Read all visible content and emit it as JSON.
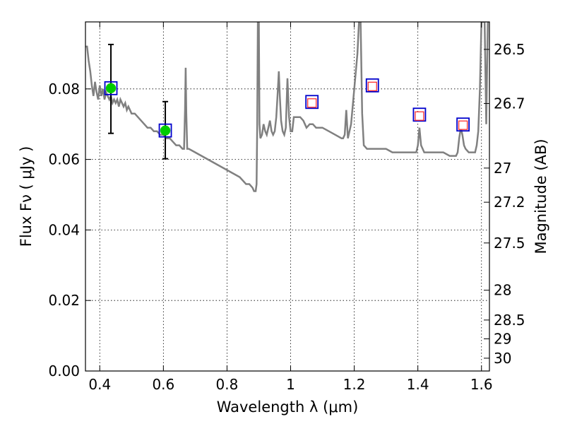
{
  "chart_data": {
    "type": "scatter",
    "title": "",
    "xlabel": "Wavelength  λ (μm)",
    "ylabel": "Flux  Fν  ( μJy )",
    "ylabel_right": "Magnitude (AB)",
    "xlim": [
      0.355,
      1.625
    ],
    "ylim": [
      0.0,
      0.099
    ],
    "grid": true,
    "x_ticks": [
      {
        "value": 0.4,
        "label": "0.4"
      },
      {
        "value": 0.6,
        "label": "0.6"
      },
      {
        "value": 0.8,
        "label": "0.8"
      },
      {
        "value": 1.0,
        "label": "1"
      },
      {
        "value": 1.2,
        "label": "1.2"
      },
      {
        "value": 1.4,
        "label": "1.4"
      },
      {
        "value": 1.6,
        "label": "1.6"
      }
    ],
    "y_ticks": [
      {
        "value": 0.0,
        "label": "0.00"
      },
      {
        "value": 0.02,
        "label": "0.02"
      },
      {
        "value": 0.04,
        "label": "0.04"
      },
      {
        "value": 0.06,
        "label": "0.06"
      },
      {
        "value": 0.08,
        "label": "0.08"
      }
    ],
    "mag_ticks": [
      {
        "mag": 26.5,
        "label": "26.5"
      },
      {
        "mag": 26.7,
        "label": "26.7"
      },
      {
        "mag": 27.0,
        "label": "27"
      },
      {
        "mag": 27.2,
        "label": "27.2"
      },
      {
        "mag": 27.5,
        "label": "27.5"
      },
      {
        "mag": 28.0,
        "label": "28"
      },
      {
        "mag": 28.5,
        "label": "28.5"
      },
      {
        "mag": 29.0,
        "label": "29"
      },
      {
        "mag": 30.0,
        "label": "30"
      }
    ],
    "colors": {
      "model": "#808080",
      "observed_fill": "#00cc00",
      "error_bar": "#000000",
      "model_box": "#0000cc",
      "predicted_box": "#ff3030"
    },
    "model_spectrum": {
      "name": "",
      "points": [
        [
          0.355,
          0.092
        ],
        [
          0.36,
          0.092
        ],
        [
          0.365,
          0.088
        ],
        [
          0.37,
          0.085
        ],
        [
          0.375,
          0.081
        ],
        [
          0.38,
          0.078
        ],
        [
          0.385,
          0.082
        ],
        [
          0.39,
          0.079
        ],
        [
          0.395,
          0.077
        ],
        [
          0.4,
          0.081
        ],
        [
          0.405,
          0.078
        ],
        [
          0.41,
          0.08
        ],
        [
          0.415,
          0.077
        ],
        [
          0.42,
          0.079
        ],
        [
          0.425,
          0.078
        ],
        [
          0.43,
          0.077
        ],
        [
          0.435,
          0.078
        ],
        [
          0.44,
          0.076
        ],
        [
          0.445,
          0.077
        ],
        [
          0.45,
          0.076
        ],
        [
          0.455,
          0.077
        ],
        [
          0.46,
          0.075
        ],
        [
          0.465,
          0.077
        ],
        [
          0.47,
          0.076
        ],
        [
          0.475,
          0.075
        ],
        [
          0.48,
          0.076
        ],
        [
          0.485,
          0.074
        ],
        [
          0.49,
          0.075
        ],
        [
          0.5,
          0.073
        ],
        [
          0.51,
          0.073
        ],
        [
          0.52,
          0.072
        ],
        [
          0.53,
          0.071
        ],
        [
          0.54,
          0.07
        ],
        [
          0.55,
          0.069
        ],
        [
          0.56,
          0.069
        ],
        [
          0.57,
          0.068
        ],
        [
          0.58,
          0.068
        ],
        [
          0.59,
          0.067
        ],
        [
          0.6,
          0.067
        ],
        [
          0.61,
          0.066
        ],
        [
          0.62,
          0.066
        ],
        [
          0.63,
          0.065
        ],
        [
          0.64,
          0.064
        ],
        [
          0.65,
          0.064
        ],
        [
          0.66,
          0.063
        ],
        [
          0.665,
          0.063
        ],
        [
          0.668,
          0.074
        ],
        [
          0.67,
          0.086
        ],
        [
          0.672,
          0.073
        ],
        [
          0.675,
          0.063
        ],
        [
          0.68,
          0.063
        ],
        [
          0.7,
          0.062
        ],
        [
          0.72,
          0.061
        ],
        [
          0.74,
          0.06
        ],
        [
          0.76,
          0.059
        ],
        [
          0.78,
          0.058
        ],
        [
          0.8,
          0.057
        ],
        [
          0.82,
          0.056
        ],
        [
          0.84,
          0.055
        ],
        [
          0.86,
          0.053
        ],
        [
          0.87,
          0.053
        ],
        [
          0.88,
          0.052
        ],
        [
          0.885,
          0.051
        ],
        [
          0.89,
          0.051
        ],
        [
          0.893,
          0.053
        ],
        [
          0.895,
          0.07
        ],
        [
          0.897,
          0.099
        ],
        [
          0.9,
          0.099
        ],
        [
          0.902,
          0.07
        ],
        [
          0.905,
          0.066
        ],
        [
          0.91,
          0.067
        ],
        [
          0.915,
          0.07
        ],
        [
          0.92,
          0.068
        ],
        [
          0.925,
          0.067
        ],
        [
          0.93,
          0.069
        ],
        [
          0.935,
          0.071
        ],
        [
          0.94,
          0.068
        ],
        [
          0.945,
          0.067
        ],
        [
          0.95,
          0.068
        ],
        [
          0.955,
          0.072
        ],
        [
          0.96,
          0.08
        ],
        [
          0.963,
          0.085
        ],
        [
          0.966,
          0.078
        ],
        [
          0.97,
          0.071
        ],
        [
          0.975,
          0.068
        ],
        [
          0.98,
          0.067
        ],
        [
          0.985,
          0.069
        ],
        [
          0.99,
          0.083
        ],
        [
          0.995,
          0.072
        ],
        [
          1.0,
          0.068
        ],
        [
          1.005,
          0.068
        ],
        [
          1.01,
          0.072
        ],
        [
          1.02,
          0.072
        ],
        [
          1.03,
          0.072
        ],
        [
          1.04,
          0.071
        ],
        [
          1.05,
          0.069
        ],
        [
          1.06,
          0.07
        ],
        [
          1.07,
          0.07
        ],
        [
          1.08,
          0.069
        ],
        [
          1.09,
          0.069
        ],
        [
          1.1,
          0.069
        ],
        [
          1.12,
          0.068
        ],
        [
          1.14,
          0.067
        ],
        [
          1.16,
          0.066
        ],
        [
          1.165,
          0.066
        ],
        [
          1.17,
          0.067
        ],
        [
          1.175,
          0.074
        ],
        [
          1.18,
          0.066
        ],
        [
          1.19,
          0.07
        ],
        [
          1.2,
          0.08
        ],
        [
          1.21,
          0.09
        ],
        [
          1.215,
          0.099
        ],
        [
          1.22,
          0.099
        ],
        [
          1.225,
          0.073
        ],
        [
          1.23,
          0.064
        ],
        [
          1.24,
          0.063
        ],
        [
          1.25,
          0.063
        ],
        [
          1.26,
          0.063
        ],
        [
          1.27,
          0.063
        ],
        [
          1.28,
          0.063
        ],
        [
          1.29,
          0.063
        ],
        [
          1.3,
          0.063
        ],
        [
          1.32,
          0.062
        ],
        [
          1.34,
          0.062
        ],
        [
          1.36,
          0.062
        ],
        [
          1.38,
          0.062
        ],
        [
          1.39,
          0.062
        ],
        [
          1.395,
          0.062
        ],
        [
          1.4,
          0.064
        ],
        [
          1.405,
          0.069
        ],
        [
          1.41,
          0.064
        ],
        [
          1.42,
          0.062
        ],
        [
          1.44,
          0.062
        ],
        [
          1.46,
          0.062
        ],
        [
          1.48,
          0.062
        ],
        [
          1.5,
          0.061
        ],
        [
          1.51,
          0.061
        ],
        [
          1.52,
          0.061
        ],
        [
          1.525,
          0.062
        ],
        [
          1.53,
          0.066
        ],
        [
          1.535,
          0.069
        ],
        [
          1.54,
          0.067
        ],
        [
          1.545,
          0.064
        ],
        [
          1.55,
          0.063
        ],
        [
          1.56,
          0.062
        ],
        [
          1.57,
          0.062
        ],
        [
          1.58,
          0.062
        ],
        [
          1.585,
          0.064
        ],
        [
          1.59,
          0.068
        ],
        [
          1.595,
          0.08
        ],
        [
          1.6,
          0.099
        ],
        [
          1.61,
          0.099
        ],
        [
          1.615,
          0.07
        ],
        [
          1.62,
          0.099
        ],
        [
          1.625,
          0.099
        ]
      ]
    },
    "observed_points": [
      {
        "x": 0.435,
        "y": 0.0802,
        "err_lo": 0.0128,
        "err_hi": 0.0124
      },
      {
        "x": 0.606,
        "y": 0.0682,
        "err_lo": 0.008,
        "err_hi": 0.0082
      }
    ],
    "model_photometry": [
      {
        "x": 0.435,
        "y": 0.0802
      },
      {
        "x": 0.606,
        "y": 0.0682
      },
      {
        "x": 1.067,
        "y": 0.0763
      },
      {
        "x": 1.257,
        "y": 0.081
      },
      {
        "x": 1.405,
        "y": 0.0727
      },
      {
        "x": 1.542,
        "y": 0.0699
      }
    ],
    "predicted_points": [
      {
        "x": 1.067,
        "y": 0.076
      },
      {
        "x": 1.257,
        "y": 0.0807
      },
      {
        "x": 1.405,
        "y": 0.0723
      },
      {
        "x": 1.542,
        "y": 0.0697
      }
    ]
  }
}
